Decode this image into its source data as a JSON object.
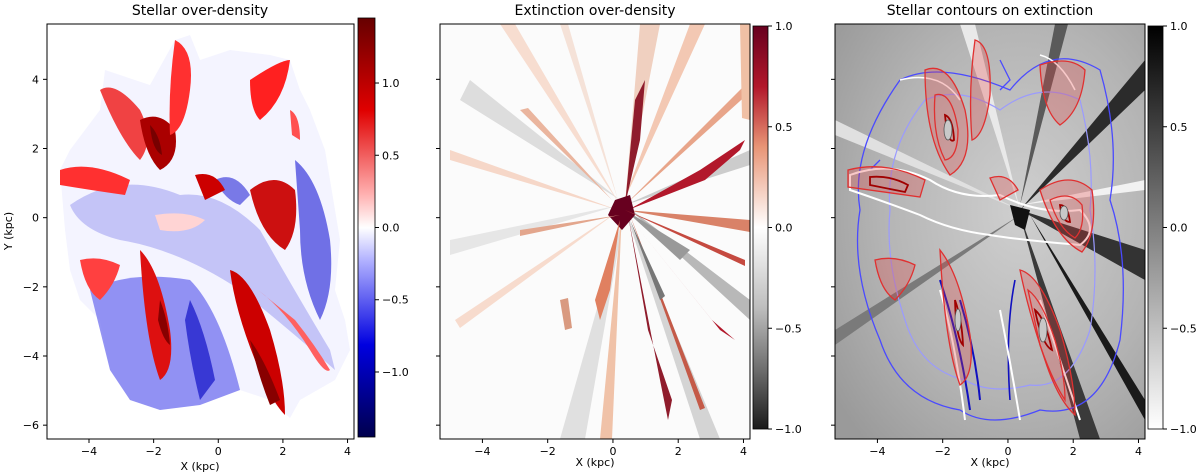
{
  "chart_data": [
    {
      "type": "heatmap",
      "title": "Stellar over-density",
      "xlabel": "X (kpc)",
      "ylabel": "Y (kpc)",
      "xlim": [
        -5.3,
        4.2
      ],
      "ylim": [
        -6.4,
        5.6
      ],
      "xticks": [
        "−4",
        "−2",
        "0",
        "2",
        "4"
      ],
      "xtick_values": [
        -4,
        -2,
        0,
        2,
        4
      ],
      "yticks": [
        "4",
        "2",
        "0",
        "−2",
        "−4",
        "−6"
      ],
      "ytick_values": [
        4,
        2,
        0,
        -2,
        -4,
        -6
      ],
      "colormap": "seismic (blue-white-red)",
      "colorbar": {
        "range": [
          -1.45,
          1.45
        ],
        "ticks": [
          "1.0",
          "0.5",
          "0.0",
          "−0.5",
          "−1.0"
        ],
        "tick_values": [
          1.0,
          0.5,
          0.0,
          -0.5,
          -1.0
        ],
        "colors": [
          "#00004d",
          "#0000ff",
          "#ffffff",
          "#ff0000",
          "#800000"
        ]
      }
    },
    {
      "type": "heatmap",
      "title": "Extinction over-density",
      "xlabel": "X (kpc)",
      "xlim": [
        -5.3,
        4.2
      ],
      "ylim": [
        -6.4,
        5.6
      ],
      "xticks": [
        "−4",
        "−2",
        "0",
        "2",
        "4"
      ],
      "xtick_values": [
        -4,
        -2,
        0,
        2,
        4
      ],
      "colormap": "RdGy (grey-white-red)",
      "colorbar": {
        "range": [
          -1.0,
          1.0
        ],
        "ticks": [
          "1.0",
          "0.5",
          "0.0",
          "−0.5",
          "−1.0"
        ],
        "tick_values": [
          1.0,
          0.5,
          0.0,
          -0.5,
          -1.0
        ],
        "colors": [
          "#1a1a1a",
          "#878787",
          "#ffffff",
          "#f4a582",
          "#67001f"
        ]
      }
    },
    {
      "type": "heatmap",
      "title": "Stellar contours on extinction",
      "xlabel": "X (kpc)",
      "xlim": [
        -5.3,
        4.2
      ],
      "ylim": [
        -6.4,
        5.6
      ],
      "xticks": [
        "−4",
        "−2",
        "0",
        "2",
        "4"
      ],
      "xtick_values": [
        -4,
        -2,
        0,
        2,
        4
      ],
      "colormap": "Greys",
      "colorbar": {
        "range": [
          -1.0,
          1.0
        ],
        "ticks": [
          "1.0",
          "0.5",
          "0.0",
          "−0.5",
          "−1.0"
        ],
        "tick_values": [
          1.0,
          0.5,
          0.0,
          -0.5,
          -1.0
        ],
        "colors": [
          "#ffffff",
          "#000000"
        ]
      }
    }
  ]
}
